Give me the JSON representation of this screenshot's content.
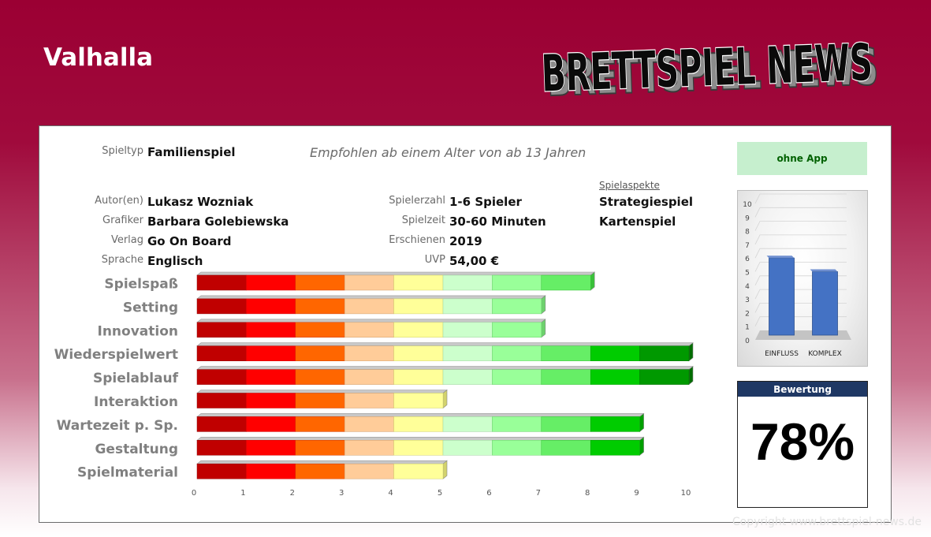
{
  "header": {
    "game_title": "Valhalla",
    "logo_text": "BRETTSPIEL NEWS"
  },
  "info": {
    "spieltyp_label": "Spieltyp",
    "spieltyp_value": "Familienspiel",
    "recommendation": "Empfohlen ab einem Alter von ab 13 Jahren",
    "fields": [
      {
        "label": "Autor(en)",
        "value": "Lukasz Wozniak"
      },
      {
        "label": "Grafiker",
        "value": "Barbara Golebiewska"
      },
      {
        "label": "Verlag",
        "value": "Go On Board"
      },
      {
        "label": "Sprache",
        "value": "Englisch"
      }
    ],
    "fields2": [
      {
        "label": "Spielerzahl",
        "value": "1-6 Spieler"
      },
      {
        "label": "Spielzeit",
        "value": "30-60 Minuten"
      },
      {
        "label": "Erschienen",
        "value": "2019"
      },
      {
        "label": "UVP",
        "value": "54,00 €"
      }
    ],
    "aspects_heading": "Spielaspekte",
    "aspects": [
      "Strategiespiel",
      "Kartenspiel"
    ]
  },
  "app_label": "ohne App",
  "mini_chart": {
    "type": "bar",
    "categories": [
      "EINFLUSS",
      "KOMPLEX"
    ],
    "values": [
      6,
      5
    ],
    "ylim": [
      0,
      10
    ],
    "yticks": [
      "0",
      "1",
      "2",
      "3",
      "4",
      "5",
      "6",
      "7",
      "8",
      "9",
      "10"
    ],
    "color": "#4472c4"
  },
  "rating": {
    "label": "Bewertung",
    "value": "78%"
  },
  "chart_data": {
    "type": "bar",
    "orientation": "horizontal",
    "categories": [
      "Spielspaß",
      "Setting",
      "Innovation",
      "Wiederspielwert",
      "Spielablauf",
      "Interaktion",
      "Wartezeit p. Sp.",
      "Gestaltung",
      "Spielmaterial"
    ],
    "values": [
      8,
      7,
      7,
      10,
      10,
      5,
      9,
      9,
      5
    ],
    "xlim": [
      0,
      10
    ],
    "xticks": [
      "0",
      "1",
      "2",
      "3",
      "4",
      "5",
      "6",
      "7",
      "8",
      "9",
      "10"
    ],
    "segment_colors": [
      "#c00000",
      "#ff0000",
      "#ff6600",
      "#ffcc99",
      "#ffff99",
      "#ccffcc",
      "#99ff99",
      "#66ee66",
      "#00cc00",
      "#009900"
    ]
  },
  "copyright": "Copyright www.brettspiel-news.de"
}
